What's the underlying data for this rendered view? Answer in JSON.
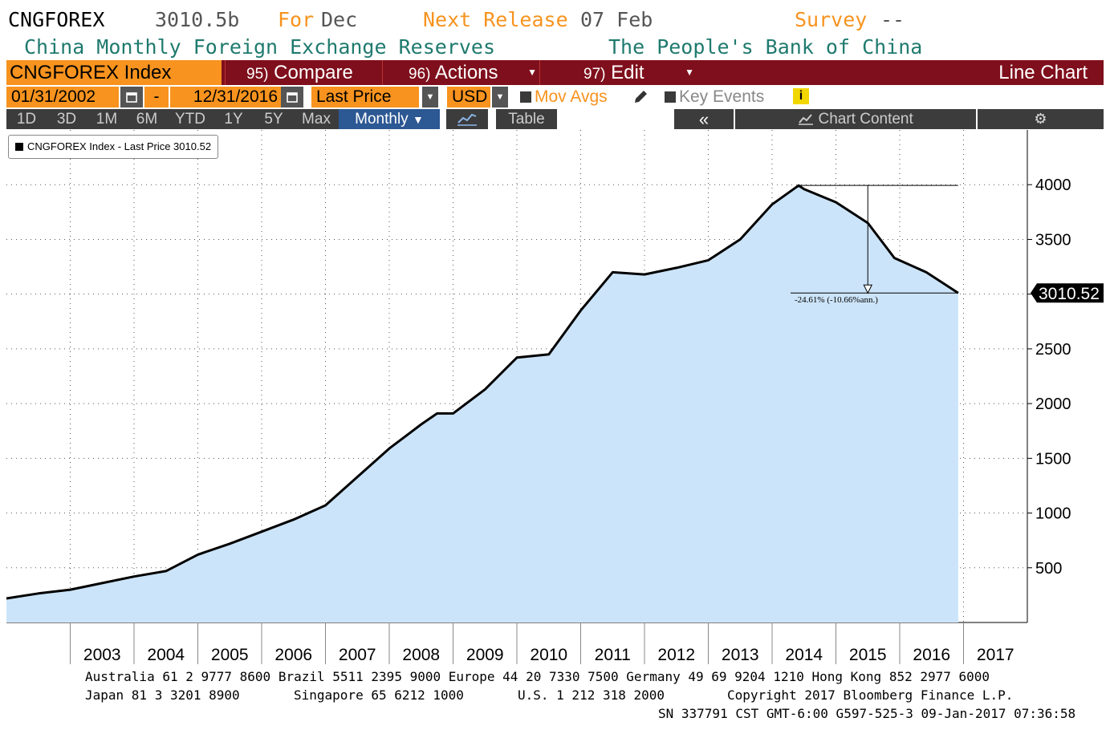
{
  "header": {
    "ticker": "CNGFOREX",
    "value": "3010.5b",
    "for_label": "For",
    "for_value": "Dec",
    "next_release_label": "Next Release",
    "next_release_value": "07 Feb",
    "survey_label": "Survey",
    "survey_value": "--",
    "description": "China Monthly Foreign Exchange Reserves",
    "source": "The People's Bank of China"
  },
  "toolbar": {
    "security": "CNGFOREX Index",
    "compare_num": "95)",
    "compare": "Compare",
    "actions_num": "96)",
    "actions": "Actions",
    "edit_num": "97)",
    "edit": "Edit",
    "chart_type": "Line Chart"
  },
  "controls": {
    "start_date": "01/31/2002",
    "dash": "-",
    "end_date": "12/31/2016",
    "field": "Last Price",
    "currency": "USD",
    "mov_avgs": "Mov Avgs",
    "key_events": "Key Events"
  },
  "ranges": {
    "items": [
      "1D",
      "3D",
      "1M",
      "6M",
      "YTD",
      "1Y",
      "5Y",
      "Max"
    ],
    "periodicity": "Monthly",
    "table": "Table",
    "chart_content": "Chart Content"
  },
  "legend": {
    "label": "CNGFOREX Index - Last Price 3010.52"
  },
  "chart_data": {
    "type": "area",
    "series": [
      {
        "name": "CNGFOREX Index - Last Price 3010.52"
      }
    ],
    "x": [
      "2002-01",
      "2002-07",
      "2003-01",
      "2003-07",
      "2004-01",
      "2004-07",
      "2005-01",
      "2005-07",
      "2006-01",
      "2006-07",
      "2007-01",
      "2007-07",
      "2008-01",
      "2008-07",
      "2008-10",
      "2009-01",
      "2009-07",
      "2010-01",
      "2010-07",
      "2011-01",
      "2011-07",
      "2012-01",
      "2012-07",
      "2013-01",
      "2013-07",
      "2014-01",
      "2014-06",
      "2014-07",
      "2015-01",
      "2015-07",
      "2015-12",
      "2016-06",
      "2016-12"
    ],
    "y": [
      220,
      265,
      300,
      360,
      420,
      470,
      620,
      720,
      830,
      940,
      1070,
      1330,
      1590,
      1810,
      1910,
      1910,
      2130,
      2420,
      2450,
      2850,
      3200,
      3180,
      3240,
      3310,
      3500,
      3820,
      3993,
      3960,
      3840,
      3650,
      3330,
      3200,
      3010.52
    ],
    "xlim": [
      "2002-01",
      "2017-12"
    ],
    "ylim": [
      0,
      4500
    ],
    "yticks": [
      500,
      1000,
      1500,
      2000,
      2500,
      3000,
      3500,
      4000
    ],
    "ytick_labels": [
      "500",
      "1000",
      "1500",
      "2000",
      "2500",
      "",
      "3500",
      "4000"
    ],
    "xtick_labels": [
      "2003",
      "2004",
      "2005",
      "2006",
      "2007",
      "2008",
      "2009",
      "2010",
      "2011",
      "2012",
      "2013",
      "2014",
      "2015",
      "2016",
      "2017"
    ],
    "last_value_label": "3010.52",
    "annotation": "-24.61% (-10.66%ann.)",
    "grid": true,
    "line_color": "#000000",
    "fill_color": "#cce4f9"
  },
  "footer": {
    "line1": "Australia 61 2 9777 8600 Brazil 5511 2395 9000 Europe 44 20 7330 7500 Germany 49 69 9204 1210 Hong Kong 852 2977 6000",
    "line2a": "Japan 81 3 3201 8900",
    "line2b": "Singapore 65 6212 1000",
    "line2c": "U.S. 1 212 318 2000",
    "line2d": "Copyright 2017 Bloomberg Finance L.P.",
    "line3": "SN 337791 CST  GMT-6:00 G597-525-3 09-Jan-2017 07:36:58"
  },
  "colors": {
    "bloomberg_orange": "#f7931e",
    "bar_red": "#7f0f1c",
    "teal_text": "#1f7a6e"
  }
}
